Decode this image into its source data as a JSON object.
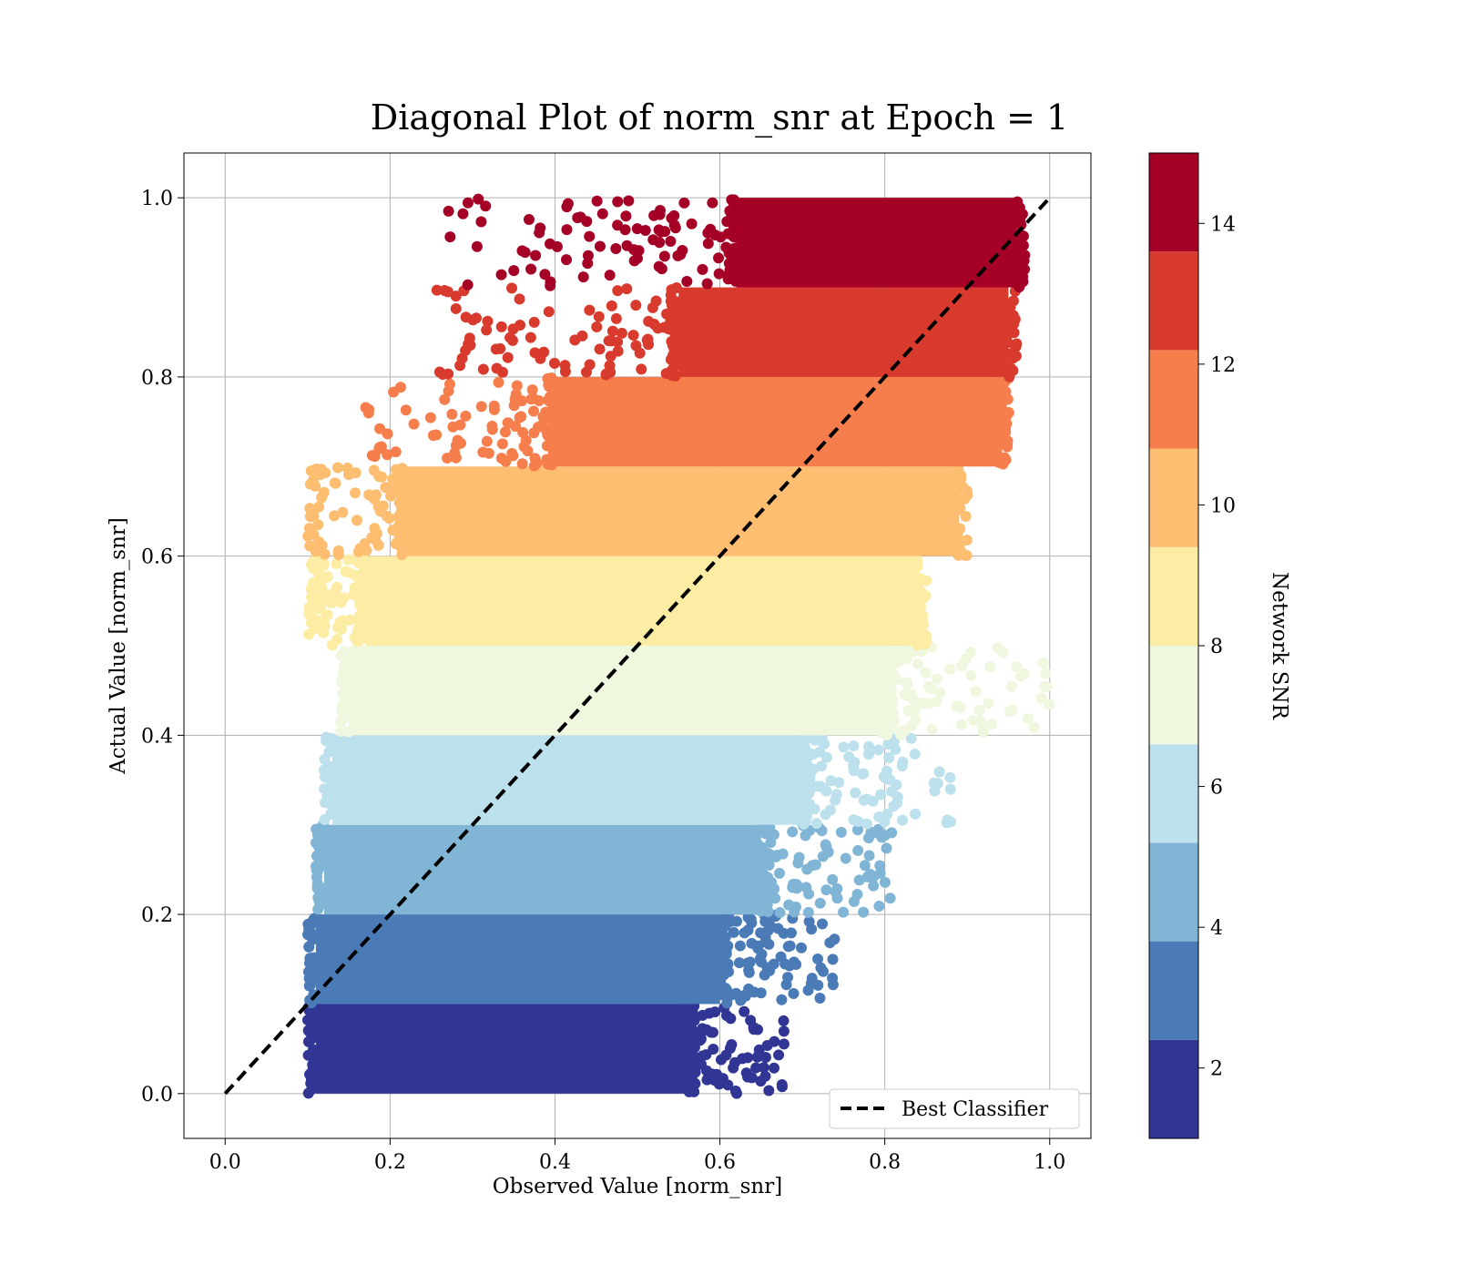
{
  "chart_data": {
    "type": "scatter",
    "title": "Diagonal Plot of norm_snr at Epoch = 1",
    "xlabel": "Observed Value [norm_snr]",
    "ylabel": "Actual Value [norm_snr]",
    "xlim": [
      -0.05,
      1.05
    ],
    "ylim": [
      -0.05,
      1.05
    ],
    "xticks": [
      "0.0",
      "0.2",
      "0.4",
      "0.6",
      "0.8",
      "1.0"
    ],
    "yticks": [
      "0.0",
      "0.2",
      "0.4",
      "0.6",
      "0.8",
      "1.0"
    ],
    "grid": true,
    "legend": {
      "placement": "lower-right",
      "entries": [
        "Best Classifier"
      ]
    },
    "reference_line": {
      "name": "Best Classifier",
      "style": "dashed",
      "color": "#000000",
      "x": [
        0,
        1
      ],
      "y": [
        0,
        1
      ]
    },
    "colorbar": {
      "label": "Network SNR",
      "range": [
        1,
        15
      ],
      "ticks": [
        "2",
        "4",
        "6",
        "8",
        "10",
        "12",
        "14"
      ],
      "bands": [
        {
          "snr_min": 1.0,
          "snr_max": 2.4,
          "y_range": [
            0.0,
            0.1
          ],
          "color": "#313695"
        },
        {
          "snr_min": 2.4,
          "snr_max": 3.8,
          "y_range": [
            0.1,
            0.2
          ],
          "color": "#4a7bb7"
        },
        {
          "snr_min": 3.8,
          "snr_max": 5.2,
          "y_range": [
            0.2,
            0.3
          ],
          "color": "#81b5d6"
        },
        {
          "snr_min": 5.2,
          "snr_max": 6.6,
          "y_range": [
            0.3,
            0.4
          ],
          "color": "#bde1ec"
        },
        {
          "snr_min": 6.6,
          "snr_max": 8.0,
          "y_range": [
            0.4,
            0.5
          ],
          "color": "#eff7df"
        },
        {
          "snr_min": 8.0,
          "snr_max": 9.4,
          "y_range": [
            0.5,
            0.6
          ],
          "color": "#fdeda4"
        },
        {
          "snr_min": 9.4,
          "snr_max": 10.8,
          "y_range": [
            0.6,
            0.7
          ],
          "color": "#fdbe72"
        },
        {
          "snr_min": 10.8,
          "snr_max": 12.2,
          "y_range": [
            0.7,
            0.8
          ],
          "color": "#f57e4c"
        },
        {
          "snr_min": 12.2,
          "snr_max": 13.6,
          "y_range": [
            0.8,
            0.9
          ],
          "color": "#d83a2d"
        },
        {
          "snr_min": 13.6,
          "snr_max": 15.0,
          "y_range": [
            0.9,
            1.0
          ],
          "color": "#a50026"
        }
      ]
    },
    "dense_regions": [
      {
        "y_range": [
          0.0,
          0.1
        ],
        "x_range": [
          0.11,
          0.56
        ]
      },
      {
        "y_range": [
          0.1,
          0.2
        ],
        "x_range": [
          0.11,
          0.6
        ]
      },
      {
        "y_range": [
          0.2,
          0.3
        ],
        "x_range": [
          0.12,
          0.65
        ]
      },
      {
        "y_range": [
          0.3,
          0.4
        ],
        "x_range": [
          0.13,
          0.7
        ]
      },
      {
        "y_range": [
          0.4,
          0.5
        ],
        "x_range": [
          0.15,
          0.8
        ]
      },
      {
        "y_range": [
          0.5,
          0.6
        ],
        "x_range": [
          0.17,
          0.84
        ]
      },
      {
        "y_range": [
          0.6,
          0.7
        ],
        "x_range": [
          0.22,
          0.89
        ]
      },
      {
        "y_range": [
          0.7,
          0.8
        ],
        "x_range": [
          0.4,
          0.94
        ]
      },
      {
        "y_range": [
          0.8,
          0.9
        ],
        "x_range": [
          0.55,
          0.95
        ]
      },
      {
        "y_range": [
          0.9,
          1.0
        ],
        "x_range": [
          0.62,
          0.96
        ]
      }
    ]
  }
}
